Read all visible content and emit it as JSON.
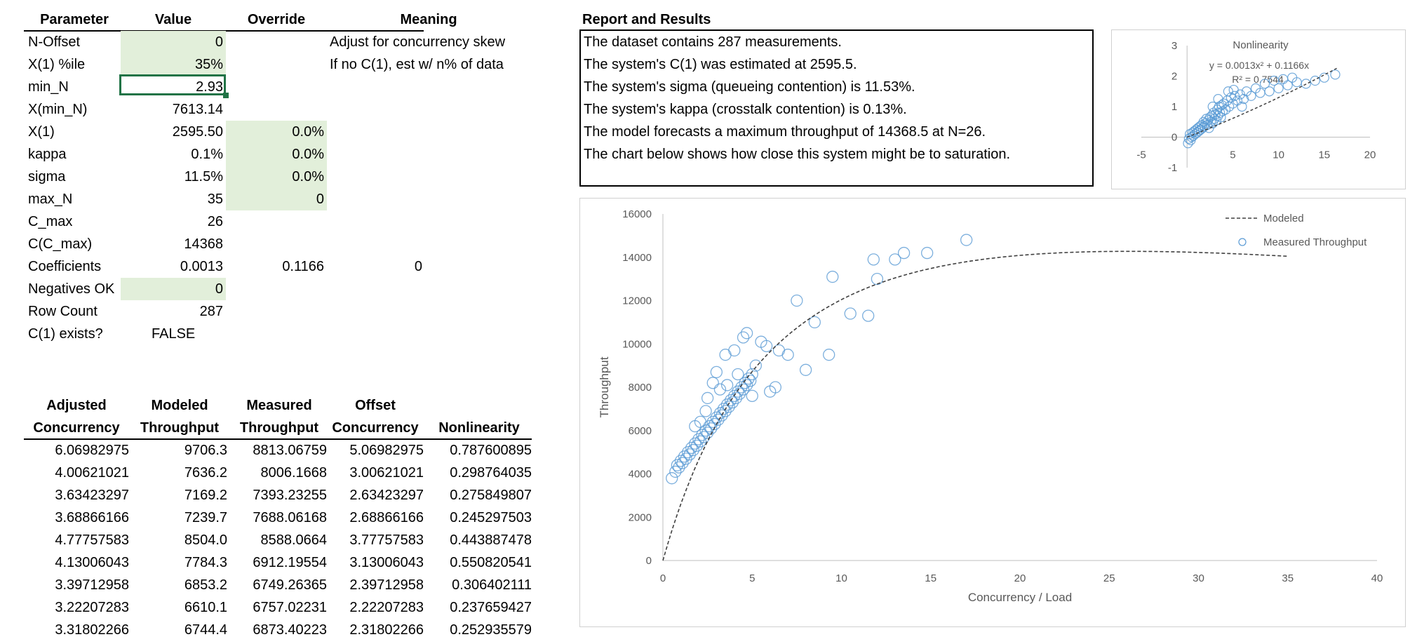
{
  "params": {
    "headers": [
      "Parameter",
      "Value",
      "Override",
      "Meaning"
    ],
    "rows": [
      {
        "name": "N-Offset",
        "value": "0",
        "override": "",
        "meaning": "Adjust for concurrency skew"
      },
      {
        "name": "X(1) %ile",
        "value": "35%",
        "override": "",
        "meaning": "If no C(1), est w/ n% of data"
      },
      {
        "name": "min_N",
        "value": "2.93",
        "override": "",
        "meaning": ""
      },
      {
        "name": "X(min_N)",
        "value": "7613.14",
        "override": "",
        "meaning": ""
      },
      {
        "name": "X(1)",
        "value": "2595.50",
        "override": "0.0%",
        "meaning": ""
      },
      {
        "name": "kappa",
        "value": "0.1%",
        "override": "0.0%",
        "meaning": ""
      },
      {
        "name": "sigma",
        "value": "11.5%",
        "override": "0.0%",
        "meaning": ""
      },
      {
        "name": "max_N",
        "value": "35",
        "override": "0",
        "meaning": ""
      },
      {
        "name": "C_max",
        "value": "26",
        "override": "",
        "meaning": ""
      },
      {
        "name": "C(C_max)",
        "value": "14368",
        "override": "",
        "meaning": ""
      },
      {
        "name": "Coefficients",
        "value": "0.0013",
        "override": "0.1166",
        "meaning": "0"
      },
      {
        "name": "Negatives OK",
        "value": "0",
        "override": "",
        "meaning": ""
      },
      {
        "name": "Row Count",
        "value": "287",
        "override": "",
        "meaning": ""
      },
      {
        "name": "C(1) exists?",
        "value": "FALSE",
        "override": "",
        "meaning": ""
      }
    ]
  },
  "data_table": {
    "headers": [
      [
        "Adjusted",
        "Concurrency"
      ],
      [
        "Modeled",
        "Throughput"
      ],
      [
        "Measured",
        "Throughput"
      ],
      [
        "Offset",
        "Concurrency"
      ],
      [
        "",
        "Nonlinearity"
      ]
    ],
    "rows": [
      [
        "6.06982975",
        "9706.3",
        "8813.06759",
        "5.06982975",
        "0.787600895"
      ],
      [
        "4.00621021",
        "7636.2",
        "8006.1668",
        "3.00621021",
        "0.298764035"
      ],
      [
        "3.63423297",
        "7169.2",
        "7393.23255",
        "2.63423297",
        "0.275849807"
      ],
      [
        "3.68866166",
        "7239.7",
        "7688.06168",
        "2.68866166",
        "0.245297503"
      ],
      [
        "4.77757583",
        "8504.0",
        "8588.0664",
        "3.77757583",
        "0.443887478"
      ],
      [
        "4.13006043",
        "7784.3",
        "6912.19554",
        "3.13006043",
        "0.550820541"
      ],
      [
        "3.39712958",
        "6853.2",
        "6749.26365",
        "2.39712958",
        "0.306402111"
      ],
      [
        "3.22207283",
        "6610.1",
        "6757.02231",
        "2.22207283",
        "0.237659427"
      ],
      [
        "3.31802266",
        "6744.4",
        "6873.40223",
        "2.31802266",
        "0.252935579"
      ]
    ]
  },
  "report": {
    "title": "Report and Results",
    "lines": [
      "The dataset contains 287 measurements.",
      "The system's C(1)  was estimated at 2595.5.",
      "The system's sigma (queueing contention) is 11.53%.",
      "The system's kappa (crosstalk contention) is 0.13%.",
      "The model forecasts a maximum throughput of 14368.5 at N=26.",
      "The chart below shows how close this system might be to saturation."
    ]
  },
  "chart_data": [
    {
      "type": "scatter",
      "title": "Nonlinearity",
      "annotations": [
        "y = 0.0013x² + 0.1166x",
        "R² = 0.7544"
      ],
      "xlim": [
        -5,
        20
      ],
      "ylim": [
        -1,
        3
      ],
      "xticks": [
        "-5",
        "5",
        "10",
        "15",
        "20"
      ],
      "yticks": [
        "-1",
        "0",
        "1",
        "2",
        "3"
      ],
      "color": "#5b9bd5",
      "trendline": {
        "a": 0.0013,
        "b": 0.1166,
        "c": 0
      },
      "points": [
        [
          0.1,
          -0.2
        ],
        [
          0.2,
          -0.05
        ],
        [
          0.3,
          0.1
        ],
        [
          0.4,
          -0.1
        ],
        [
          0.5,
          0.0
        ],
        [
          0.6,
          0.15
        ],
        [
          0.7,
          0.05
        ],
        [
          0.8,
          0.2
        ],
        [
          0.9,
          0.1
        ],
        [
          1.0,
          0.25
        ],
        [
          1.1,
          0.15
        ],
        [
          1.2,
          0.3
        ],
        [
          1.3,
          0.2
        ],
        [
          1.4,
          0.35
        ],
        [
          1.5,
          0.25
        ],
        [
          1.6,
          0.4
        ],
        [
          1.7,
          0.3
        ],
        [
          1.8,
          0.5
        ],
        [
          1.9,
          0.35
        ],
        [
          2.0,
          0.45
        ],
        [
          2.1,
          0.6
        ],
        [
          2.2,
          0.4
        ],
        [
          2.3,
          0.55
        ],
        [
          2.4,
          0.3
        ],
        [
          2.5,
          0.65
        ],
        [
          2.6,
          0.5
        ],
        [
          2.7,
          0.7
        ],
        [
          2.8,
          0.45
        ],
        [
          2.9,
          0.8
        ],
        [
          3.0,
          0.6
        ],
        [
          3.1,
          0.75
        ],
        [
          3.2,
          0.55
        ],
        [
          3.3,
          0.9
        ],
        [
          3.4,
          0.7
        ],
        [
          3.5,
          1.0
        ],
        [
          3.6,
          0.8
        ],
        [
          3.7,
          0.65
        ],
        [
          3.8,
          1.05
        ],
        [
          3.9,
          0.85
        ],
        [
          4.0,
          1.1
        ],
        [
          4.2,
          0.9
        ],
        [
          4.4,
          1.2
        ],
        [
          4.6,
          1.0
        ],
        [
          4.8,
          1.3
        ],
        [
          5.0,
          1.1
        ],
        [
          5.2,
          1.35
        ],
        [
          5.5,
          1.2
        ],
        [
          5.8,
          1.4
        ],
        [
          6.2,
          1.25
        ],
        [
          6.5,
          1.5
        ],
        [
          7.0,
          1.35
        ],
        [
          7.5,
          1.6
        ],
        [
          8.0,
          1.45
        ],
        [
          8.5,
          1.75
        ],
        [
          9.0,
          1.5
        ],
        [
          9.5,
          1.85
        ],
        [
          10.0,
          1.6
        ],
        [
          10.5,
          1.9
        ],
        [
          11.0,
          1.7
        ],
        [
          11.5,
          1.95
        ],
        [
          12.0,
          1.8
        ],
        [
          13.0,
          1.75
        ],
        [
          14.0,
          1.85
        ],
        [
          15.0,
          1.95
        ],
        [
          16.2,
          2.05
        ],
        [
          4.5,
          1.5
        ],
        [
          5.1,
          1.55
        ],
        [
          3.4,
          1.25
        ],
        [
          2.8,
          1.0
        ],
        [
          6.0,
          1.0
        ]
      ]
    },
    {
      "type": "scatter",
      "xlabel": "Concurrency / Load",
      "ylabel": "Throughput",
      "xlim": [
        0,
        40
      ],
      "ylim": [
        0,
        16000
      ],
      "xticks": [
        "0",
        "5",
        "10",
        "15",
        "20",
        "25",
        "30",
        "35",
        "40"
      ],
      "yticks": [
        "0",
        "2000",
        "4000",
        "6000",
        "8000",
        "10000",
        "12000",
        "14000",
        "16000"
      ],
      "legend": {
        "position": "top-right",
        "entries": [
          "Modeled",
          "Measured Throughput"
        ]
      },
      "color": "#5b9bd5",
      "model": {
        "X1": 2595.5,
        "sigma": 0.1153,
        "kappa": 0.0013,
        "max_n": 35
      },
      "points": [
        [
          0.5,
          3800
        ],
        [
          0.7,
          4100
        ],
        [
          0.8,
          4400
        ],
        [
          0.9,
          4300
        ],
        [
          1.0,
          4600
        ],
        [
          1.1,
          4500
        ],
        [
          1.2,
          4800
        ],
        [
          1.3,
          4700
        ],
        [
          1.4,
          5000
        ],
        [
          1.5,
          4900
        ],
        [
          1.6,
          5200
        ],
        [
          1.7,
          5100
        ],
        [
          1.8,
          5400
        ],
        [
          1.9,
          5300
        ],
        [
          2.0,
          5600
        ],
        [
          2.1,
          5500
        ],
        [
          2.2,
          5800
        ],
        [
          2.3,
          5700
        ],
        [
          2.4,
          6000
        ],
        [
          2.5,
          5900
        ],
        [
          2.6,
          6200
        ],
        [
          2.7,
          6100
        ],
        [
          2.8,
          6400
        ],
        [
          2.9,
          6300
        ],
        [
          3.0,
          6600
        ],
        [
          3.1,
          6500
        ],
        [
          3.2,
          6800
        ],
        [
          3.3,
          6700
        ],
        [
          3.4,
          7000
        ],
        [
          3.5,
          6900
        ],
        [
          3.6,
          7200
        ],
        [
          3.7,
          7100
        ],
        [
          3.8,
          7400
        ],
        [
          3.9,
          7300
        ],
        [
          4.0,
          7600
        ],
        [
          4.1,
          7500
        ],
        [
          4.2,
          7800
        ],
        [
          4.3,
          7700
        ],
        [
          4.4,
          8000
        ],
        [
          4.5,
          7900
        ],
        [
          4.6,
          8200
        ],
        [
          4.7,
          8100
        ],
        [
          4.8,
          8400
        ],
        [
          4.9,
          8300
        ],
        [
          5.0,
          8600
        ],
        [
          3.0,
          8700
        ],
        [
          3.5,
          9500
        ],
        [
          4.0,
          9700
        ],
        [
          4.5,
          10300
        ],
        [
          4.7,
          10500
        ],
        [
          5.5,
          10100
        ],
        [
          5.8,
          9900
        ],
        [
          6.5,
          9700
        ],
        [
          7.0,
          9500
        ],
        [
          2.5,
          7500
        ],
        [
          2.8,
          8200
        ],
        [
          3.2,
          7900
        ],
        [
          1.8,
          6200
        ],
        [
          2.1,
          6400
        ],
        [
          2.4,
          6900
        ],
        [
          3.6,
          8100
        ],
        [
          4.2,
          8600
        ],
        [
          5.2,
          9000
        ],
        [
          5.0,
          7600
        ],
        [
          6.0,
          7800
        ],
        [
          6.3,
          8000
        ],
        [
          7.5,
          12000
        ],
        [
          8.0,
          8800
        ],
        [
          8.5,
          11000
        ],
        [
          9.3,
          9500
        ],
        [
          9.5,
          13100
        ],
        [
          10.5,
          11400
        ],
        [
          11.5,
          11300
        ],
        [
          11.8,
          13900
        ],
        [
          12.0,
          13000
        ],
        [
          13.0,
          13900
        ],
        [
          13.5,
          14200
        ],
        [
          14.8,
          14200
        ],
        [
          17.0,
          14800
        ]
      ]
    }
  ]
}
